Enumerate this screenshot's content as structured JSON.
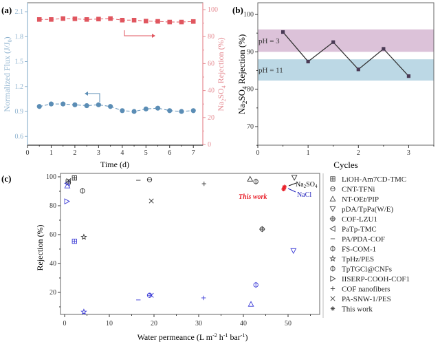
{
  "chart_data": [
    {
      "panel": "(a)",
      "type": "line",
      "xlabel": "Time (d)",
      "ylabel_left": "Normalized Flux (J/J0)",
      "ylabel_right": "Na2SO4 Rejection (%)",
      "xlim": [
        0,
        7.4
      ],
      "ylim_left": [
        0.5,
        2.2
      ],
      "ylim_right": [
        0,
        100
      ],
      "x_ticks": [
        "0",
        "1",
        "2",
        "3",
        "4",
        "5",
        "6",
        "7"
      ],
      "y_ticks_left": [
        "0.6",
        "0.9",
        "1.2",
        "1.5",
        "1.8",
        "2.1"
      ],
      "y_ticks_right": [
        "0",
        "20",
        "40",
        "60",
        "80",
        "100"
      ],
      "grid": false,
      "colors": {
        "flux": "#5b8db5",
        "rejection": "#e0565f",
        "left_axis": "#8fb3cf",
        "right_axis": "#e58a91"
      },
      "x": [
        0.5,
        1.0,
        1.5,
        2.0,
        2.5,
        3.0,
        3.5,
        4.0,
        4.5,
        5.0,
        5.5,
        6.0,
        6.5,
        7.0
      ],
      "series": [
        {
          "name": "Normalized Flux",
          "axis": "left",
          "marker": "circle",
          "values": [
            0.96,
            0.99,
            0.99,
            0.98,
            0.97,
            0.98,
            0.96,
            0.91,
            0.9,
            0.93,
            0.94,
            0.91,
            0.9,
            0.91
          ]
        },
        {
          "name": "Na2SO4 Rejection",
          "axis": "right",
          "marker": "square",
          "values": [
            92.7,
            92.7,
            93.4,
            93.2,
            92.7,
            93.0,
            93.4,
            92.2,
            92.2,
            91.5,
            91.3,
            90.8,
            90.8,
            91.2
          ]
        }
      ]
    },
    {
      "panel": "(b)",
      "type": "line",
      "xlabel": "Cycles",
      "ylabel": "Na2SO4 Rejection (%)",
      "xlim": [
        0,
        3.5
      ],
      "ylim": [
        65,
        103
      ],
      "x_ticks": [
        "0",
        "1",
        "2",
        "3"
      ],
      "y_ticks": [
        "70",
        "80",
        "90",
        "100"
      ],
      "grid": false,
      "bands": [
        {
          "label": "pH = 3",
          "from": 90,
          "to": 96,
          "color": "#dcc2d9"
        },
        {
          "label": "pH = 11",
          "from": 82.3,
          "to": 88,
          "color": "#bcd8e5"
        }
      ],
      "x": [
        0.5,
        1.0,
        1.5,
        2.0,
        2.5,
        3.0
      ],
      "series": [
        {
          "name": "Na2SO4 Rejection",
          "values": [
            95.3,
            87.4,
            92.6,
            85.3,
            90.8,
            83.5
          ],
          "color": "#333333"
        }
      ]
    },
    {
      "panel": "(c)",
      "type": "scatter",
      "xlabel": "Water permeance (L m-2 h-1 bar-1)",
      "ylabel": "Rejection (%)",
      "xlim": [
        -1,
        57
      ],
      "ylim": [
        5,
        102
      ],
      "x_ticks": [
        "0",
        "10",
        "20",
        "30",
        "40",
        "50"
      ],
      "y_ticks": [
        "20",
        "40",
        "60",
        "80",
        "100"
      ],
      "grid": false,
      "legend_position": "right",
      "colors": {
        "na2so4": "#333333",
        "nacl": "#3a3ad6",
        "this_work": "#e8202a"
      },
      "annotations": {
        "this_work": "This work",
        "na2so4": "Na2SO4",
        "nacl": "NaCl"
      },
      "series": [
        {
          "name": "LiOH-Am7CD-TMC",
          "marker": "boxplus",
          "points": [
            {
              "x": 2.2,
              "y": 99.2,
              "salt": "na2so4"
            },
            {
              "x": 0.8,
              "y": 96.5,
              "salt": "na2so4"
            },
            {
              "x": 2.2,
              "y": 55.4,
              "salt": "nacl"
            }
          ]
        },
        {
          "name": "CNT-TFNi",
          "marker": "ominus",
          "points": [
            {
              "x": 19.0,
              "y": 98.0,
              "salt": "na2so4"
            },
            {
              "x": 19.0,
              "y": 18.0,
              "salt": "nacl"
            }
          ]
        },
        {
          "name": "NT-OEt/PIP",
          "marker": "triangle-up",
          "points": [
            {
              "x": 41.5,
              "y": 98.5,
              "salt": "na2so4"
            },
            {
              "x": 0.6,
              "y": 93.8,
              "salt": "nacl"
            },
            {
              "x": 41.7,
              "y": 11.9,
              "salt": "nacl"
            }
          ]
        },
        {
          "name": "pDA/TpPa(W/E)",
          "marker": "triangle-down",
          "points": [
            {
              "x": 51.4,
              "y": 99.5,
              "salt": "na2so4"
            },
            {
              "x": 51.2,
              "y": 48.8,
              "salt": "nacl"
            }
          ]
        },
        {
          "name": "COF-LZU1",
          "marker": "oplus",
          "points": [
            {
              "x": 44.2,
              "y": 63.8,
              "salt": "na2so4"
            }
          ]
        },
        {
          "name": "PaTp-TMC",
          "marker": "triangle-left",
          "points": [
            {
              "x": 0.6,
              "y": 95.5,
              "salt": "nacl"
            }
          ]
        },
        {
          "name": "PA/PDA-COF",
          "marker": "minus",
          "points": [
            {
              "x": 16.5,
              "y": 97.6,
              "salt": "na2so4"
            },
            {
              "x": 16.5,
              "y": 14.8,
              "salt": "nacl"
            }
          ]
        },
        {
          "name": "FS-COM-1",
          "marker": "phi",
          "points": [
            {
              "x": 4.0,
              "y": 90.3,
              "salt": "na2so4"
            }
          ]
        },
        {
          "name": "TpHz/PES",
          "marker": "star",
          "points": [
            {
              "x": 4.3,
              "y": 58.3,
              "salt": "na2so4"
            },
            {
              "x": 4.3,
              "y": 6.5,
              "salt": "nacl"
            }
          ]
        },
        {
          "name": "TpTGCl@CNFs",
          "marker": "phi",
          "points": [
            {
              "x": 42.8,
              "y": 96.7,
              "salt": "na2so4"
            },
            {
              "x": 42.8,
              "y": 25.2,
              "salt": "nacl"
            }
          ]
        },
        {
          "name": "IISERP-COOH-COF1",
          "marker": "triangle-right",
          "points": [
            {
              "x": 0.5,
              "y": 83.0,
              "salt": "nacl"
            }
          ]
        },
        {
          "name": "COF nanofibers",
          "marker": "plus",
          "points": [
            {
              "x": 31.2,
              "y": 95.2,
              "salt": "na2so4"
            },
            {
              "x": 31.1,
              "y": 16.2,
              "salt": "nacl"
            }
          ]
        },
        {
          "name": "PA-SNW-1/PES",
          "marker": "x",
          "points": [
            {
              "x": 19.4,
              "y": 83.3,
              "salt": "na2so4"
            },
            {
              "x": 0.9,
              "y": 97.4,
              "salt": "na2so4"
            },
            {
              "x": 19.4,
              "y": 18.0,
              "salt": "nacl"
            }
          ]
        },
        {
          "name": "This work",
          "marker": "asterisk",
          "points": [
            {
              "x": 49.2,
              "y": 93.0,
              "salt": "na2so4"
            },
            {
              "x": 49.0,
              "y": 91.5,
              "salt": "nacl"
            }
          ]
        }
      ]
    }
  ]
}
